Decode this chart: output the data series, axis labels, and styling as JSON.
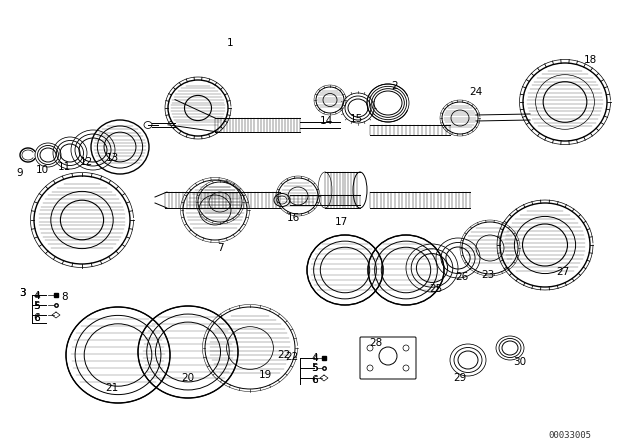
{
  "bg_color": "#ffffff",
  "line_color": "#000000",
  "watermark": "00033005",
  "lw": 0.7,
  "lw_thick": 1.0
}
